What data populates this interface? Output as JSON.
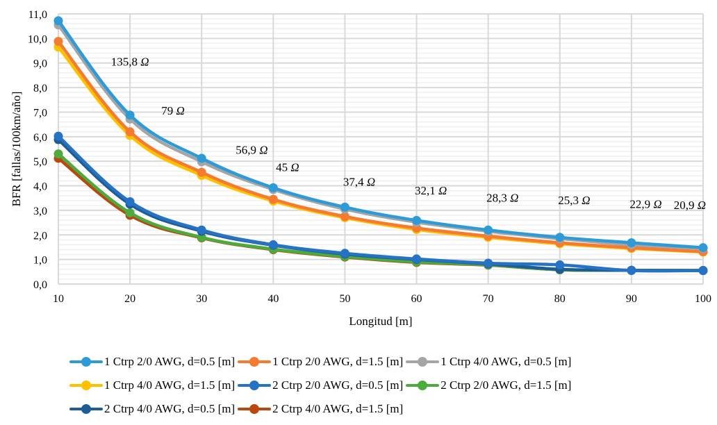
{
  "chart_data": {
    "type": "line",
    "title": "",
    "xlabel": "Longitud [m]",
    "ylabel": "BFR [fallas/100km/año]",
    "x": [
      10,
      20,
      30,
      40,
      50,
      60,
      70,
      80,
      90,
      100
    ],
    "x_tick_labels": [
      "10",
      "20",
      "30",
      "40",
      "50",
      "60",
      "70",
      "80",
      "90",
      "100"
    ],
    "xlim": [
      10,
      100
    ],
    "ylim": [
      0,
      11
    ],
    "y_tick_labels": [
      "0,0",
      "1,0",
      "2,0",
      "3,0",
      "4,0",
      "5,0",
      "6,0",
      "7,0",
      "8,0",
      "9,0",
      "10,0",
      "11,0"
    ],
    "y_major_step": 1,
    "y_minor_step": 0.2,
    "grid": true,
    "smooth": true,
    "legend_position": "bottom",
    "series": [
      {
        "name": "1 Ctrp 2/0 AWG, d=0.5 [m]",
        "color": "#2E9BD6",
        "values": [
          10.72,
          6.88,
          5.12,
          3.92,
          3.13,
          2.59,
          2.2,
          1.9,
          1.68,
          1.48
        ]
      },
      {
        "name": "1 Ctrp 2/0 AWG, d=1.5 [m]",
        "color": "#F47B30",
        "values": [
          9.88,
          6.2,
          4.55,
          3.45,
          2.75,
          2.28,
          1.95,
          1.68,
          1.48,
          1.32
        ]
      },
      {
        "name": "1 Ctrp 4/0 AWG, d=0.5 [m]",
        "color": "#A5A5A5",
        "values": [
          10.55,
          6.72,
          4.98,
          3.85,
          3.05,
          2.52,
          2.15,
          1.85,
          1.6,
          1.45
        ]
      },
      {
        "name": "1 Ctrp 4/0 AWG, d=1.5 [m]",
        "color": "#FFC000",
        "values": [
          9.65,
          6.05,
          4.42,
          3.38,
          2.7,
          2.22,
          1.9,
          1.64,
          1.45,
          1.3
        ]
      },
      {
        "name": "2 Ctrp 2/0 AWG, d=0.5 [m]",
        "color": "#2672C4",
        "values": [
          6.02,
          3.35,
          2.2,
          1.6,
          1.25,
          1.02,
          0.85,
          0.78,
          0.55,
          0.55
        ]
      },
      {
        "name": "2 Ctrp 2/0 AWG, d=1.5 [m]",
        "color": "#4DAA3C",
        "values": [
          5.3,
          2.9,
          1.9,
          1.42,
          1.12,
          0.9,
          0.78,
          0.58,
          0.56,
          0.55
        ]
      },
      {
        "name": "2 Ctrp 4/0 AWG, d=0.5 [m]",
        "color": "#1E5D94",
        "values": [
          5.88,
          3.25,
          2.15,
          1.58,
          1.22,
          1.0,
          0.82,
          0.6,
          0.56,
          0.55
        ]
      },
      {
        "name": "2 Ctrp 4/0 AWG, d=1.5 [m]",
        "color": "#B8480F",
        "values": [
          5.12,
          2.8,
          1.88,
          1.4,
          1.1,
          0.88,
          0.77,
          0.58,
          0.56,
          0.55
        ]
      }
    ],
    "annotations": [
      {
        "text": "135,8",
        "unit": "Ω",
        "x": 20,
        "y": 8.9
      },
      {
        "text": "79",
        "unit": "Ω",
        "x": 26,
        "y": 6.9
      },
      {
        "text": "56,9",
        "unit": "Ω",
        "x": 37,
        "y": 5.3
      },
      {
        "text": "45",
        "unit": "Ω",
        "x": 42,
        "y": 4.6
      },
      {
        "text": "37,4",
        "unit": "Ω",
        "x": 52,
        "y": 4.0
      },
      {
        "text": "32,1",
        "unit": "Ω",
        "x": 62,
        "y": 3.65
      },
      {
        "text": "28,3",
        "unit": "Ω",
        "x": 72,
        "y": 3.35
      },
      {
        "text": "25,3",
        "unit": "Ω",
        "x": 82,
        "y": 3.25
      },
      {
        "text": "22,9",
        "unit": "Ω",
        "x": 92,
        "y": 3.1
      },
      {
        "text": "20,9",
        "unit": "Ω",
        "x": 100,
        "y": 3.05
      }
    ]
  },
  "legend": {
    "rows": [
      [
        0,
        1,
        2
      ],
      [
        3,
        4,
        5
      ],
      [
        6,
        7
      ]
    ]
  }
}
